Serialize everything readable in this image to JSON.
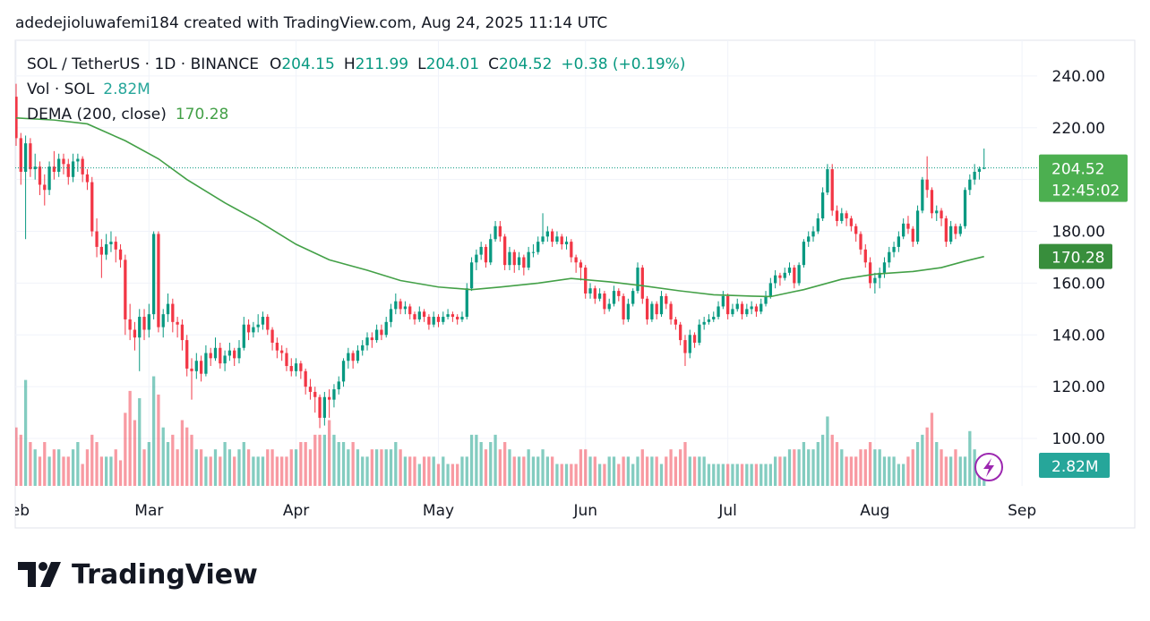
{
  "watermark": "adedejioluwafemi184 created with TradingView.com, Aug 24, 2025 11:14 UTC",
  "brand": "TradingView",
  "chart_data": {
    "type": "candlestick",
    "legend_title": "SOL / TetherUS · 1D · BINANCE",
    "ohlc_letters": [
      "O",
      "H",
      "L",
      "C"
    ],
    "change": "+0.38 (+0.19%)",
    "countdown": "12:45:02",
    "up_color": "#089981",
    "down_color": "#f23645",
    "grid": true,
    "xlim": [
      0,
      215
    ],
    "xticks": [
      {
        "value": 0,
        "label": "Feb"
      },
      {
        "value": 28,
        "label": "Mar"
      },
      {
        "value": 59,
        "label": "Apr"
      },
      {
        "value": 89,
        "label": "May"
      },
      {
        "value": 120,
        "label": "Jun"
      },
      {
        "value": 150,
        "label": "Jul"
      },
      {
        "value": 181,
        "label": "Aug"
      },
      {
        "value": 212,
        "label": "Sep"
      }
    ],
    "ylim": [
      81.7,
      253.8
    ],
    "yticks": [
      {
        "value": 100,
        "label": "100.00"
      },
      {
        "value": 120,
        "label": "120.00"
      },
      {
        "value": 140,
        "label": "140.00"
      },
      {
        "value": 160,
        "label": "160.00"
      },
      {
        "value": 180,
        "label": "180.00"
      },
      {
        "value": 200,
        "label": "200.00"
      },
      {
        "value": 220,
        "label": "220.00"
      },
      {
        "value": 240,
        "label": "240.00"
      }
    ],
    "ohlc": [
      [
        232,
        237,
        213,
        216
      ],
      [
        216,
        218,
        198,
        203
      ],
      [
        203,
        217,
        177,
        214
      ],
      [
        214,
        216,
        201,
        204
      ],
      [
        204,
        210,
        200,
        205
      ],
      [
        205,
        207,
        194,
        198
      ],
      [
        198,
        202,
        190,
        196
      ],
      [
        196,
        207,
        194,
        205
      ],
      [
        205,
        211,
        200,
        203
      ],
      [
        203,
        210,
        201,
        208
      ],
      [
        208,
        210,
        202,
        206
      ],
      [
        206,
        208,
        198,
        201
      ],
      [
        201,
        210,
        199,
        207
      ],
      [
        207,
        210,
        203,
        208
      ],
      [
        208,
        209,
        199,
        202
      ],
      [
        202,
        204,
        196,
        199
      ],
      [
        199,
        201,
        178,
        180
      ],
      [
        180,
        185,
        170,
        174
      ],
      [
        174,
        177,
        162,
        171
      ],
      [
        171,
        179,
        169,
        175
      ],
      [
        175,
        180,
        172,
        176
      ],
      [
        176,
        178,
        168,
        173
      ],
      [
        173,
        175,
        166,
        169
      ],
      [
        169,
        171,
        140,
        146
      ],
      [
        146,
        152,
        138,
        142
      ],
      [
        142,
        145,
        134,
        139
      ],
      [
        139,
        150,
        126,
        147
      ],
      [
        147,
        150,
        138,
        142
      ],
      [
        142,
        152,
        139,
        148
      ],
      [
        148,
        180,
        146,
        179
      ],
      [
        179,
        180,
        141,
        143
      ],
      [
        143,
        150,
        139,
        148
      ],
      [
        148,
        156,
        145,
        152
      ],
      [
        152,
        154,
        141,
        145
      ],
      [
        145,
        147,
        139,
        144
      ],
      [
        144,
        146,
        134,
        138
      ],
      [
        138,
        140,
        124,
        127
      ],
      [
        127,
        131,
        115,
        126
      ],
      [
        126,
        133,
        123,
        130
      ],
      [
        130,
        132,
        122,
        125
      ],
      [
        125,
        136,
        124,
        133
      ],
      [
        133,
        135,
        128,
        131
      ],
      [
        131,
        139,
        130,
        135
      ],
      [
        135,
        137,
        127,
        129
      ],
      [
        129,
        134,
        126,
        132
      ],
      [
        132,
        137,
        130,
        134
      ],
      [
        134,
        135,
        128,
        131
      ],
      [
        131,
        138,
        129,
        135
      ],
      [
        135,
        147,
        134,
        144
      ],
      [
        144,
        146,
        138,
        141
      ],
      [
        141,
        145,
        139,
        143
      ],
      [
        143,
        148,
        141,
        144
      ],
      [
        144,
        149,
        142,
        147
      ],
      [
        147,
        148,
        140,
        142
      ],
      [
        142,
        143,
        134,
        137
      ],
      [
        137,
        139,
        131,
        134
      ],
      [
        134,
        136,
        130,
        133
      ],
      [
        133,
        135,
        126,
        128
      ],
      [
        128,
        131,
        124,
        126
      ],
      [
        126,
        131,
        124,
        129
      ],
      [
        129,
        130,
        123,
        126
      ],
      [
        126,
        127,
        117,
        120
      ],
      [
        120,
        123,
        115,
        118
      ],
      [
        118,
        120,
        110,
        116
      ],
      [
        116,
        117,
        104,
        108
      ],
      [
        108,
        118,
        105,
        116
      ],
      [
        116,
        119,
        108,
        115
      ],
      [
        115,
        121,
        112,
        119
      ],
      [
        119,
        124,
        117,
        122
      ],
      [
        122,
        131,
        120,
        130
      ],
      [
        130,
        135,
        127,
        133
      ],
      [
        133,
        134,
        127,
        130
      ],
      [
        130,
        136,
        129,
        134
      ],
      [
        134,
        138,
        132,
        136
      ],
      [
        136,
        141,
        134,
        139
      ],
      [
        139,
        141,
        135,
        138
      ],
      [
        138,
        144,
        137,
        142
      ],
      [
        142,
        144,
        138,
        140
      ],
      [
        140,
        147,
        139,
        145
      ],
      [
        145,
        152,
        143,
        150
      ],
      [
        150,
        156,
        148,
        153
      ],
      [
        153,
        154,
        148,
        150
      ],
      [
        150,
        153,
        148,
        151
      ],
      [
        151,
        152,
        146,
        148
      ],
      [
        148,
        149,
        144,
        146
      ],
      [
        146,
        151,
        145,
        149
      ],
      [
        149,
        150,
        145,
        147
      ],
      [
        147,
        148,
        142,
        144
      ],
      [
        144,
        149,
        143,
        147
      ],
      [
        147,
        148,
        143,
        145
      ],
      [
        145,
        149,
        144,
        147
      ],
      [
        147,
        150,
        146,
        148
      ],
      [
        148,
        149,
        145,
        147
      ],
      [
        147,
        148,
        144,
        146
      ],
      [
        146,
        149,
        145,
        147
      ],
      [
        147,
        160,
        146,
        158
      ],
      [
        158,
        170,
        157,
        168
      ],
      [
        168,
        173,
        165,
        171
      ],
      [
        171,
        176,
        169,
        174
      ],
      [
        174,
        175,
        166,
        168
      ],
      [
        168,
        179,
        167,
        177
      ],
      [
        177,
        184,
        176,
        182
      ],
      [
        182,
        184,
        176,
        178
      ],
      [
        178,
        179,
        165,
        167
      ],
      [
        167,
        174,
        165,
        172
      ],
      [
        172,
        173,
        164,
        167
      ],
      [
        167,
        172,
        165,
        170
      ],
      [
        170,
        171,
        163,
        166
      ],
      [
        166,
        174,
        165,
        172
      ],
      [
        172,
        175,
        170,
        172
      ],
      [
        172,
        178,
        171,
        176
      ],
      [
        176,
        187,
        175,
        178
      ],
      [
        178,
        182,
        176,
        180
      ],
      [
        180,
        181,
        174,
        176
      ],
      [
        176,
        180,
        175,
        178
      ],
      [
        178,
        179,
        173,
        175
      ],
      [
        175,
        178,
        173,
        176
      ],
      [
        176,
        177,
        168,
        170
      ],
      [
        170,
        171,
        164,
        168
      ],
      [
        168,
        169,
        161,
        166
      ],
      [
        166,
        167,
        154,
        156
      ],
      [
        156,
        160,
        154,
        158
      ],
      [
        158,
        159,
        152,
        154
      ],
      [
        154,
        158,
        153,
        156
      ],
      [
        156,
        157,
        148,
        150
      ],
      [
        150,
        154,
        149,
        152
      ],
      [
        152,
        159,
        151,
        157
      ],
      [
        157,
        158,
        153,
        155
      ],
      [
        155,
        156,
        144,
        146
      ],
      [
        146,
        154,
        145,
        152
      ],
      [
        152,
        158,
        151,
        157
      ],
      [
        157,
        168,
        156,
        166
      ],
      [
        166,
        167,
        152,
        154
      ],
      [
        154,
        155,
        144,
        146
      ],
      [
        146,
        153,
        145,
        152
      ],
      [
        152,
        153,
        146,
        148
      ],
      [
        148,
        157,
        147,
        155
      ],
      [
        155,
        156,
        150,
        152
      ],
      [
        152,
        153,
        144,
        146
      ],
      [
        146,
        147,
        142,
        144
      ],
      [
        144,
        145,
        136,
        138
      ],
      [
        138,
        140,
        128,
        133
      ],
      [
        133,
        142,
        131,
        140
      ],
      [
        140,
        141,
        135,
        137
      ],
      [
        137,
        146,
        136,
        144
      ],
      [
        144,
        147,
        142,
        145
      ],
      [
        145,
        148,
        144,
        146
      ],
      [
        146,
        149,
        145,
        147
      ],
      [
        147,
        153,
        146,
        151
      ],
      [
        151,
        157,
        150,
        155
      ],
      [
        155,
        156,
        146,
        148
      ],
      [
        148,
        152,
        147,
        150
      ],
      [
        150,
        154,
        149,
        152
      ],
      [
        152,
        153,
        146,
        148
      ],
      [
        148,
        152,
        147,
        150
      ],
      [
        150,
        153,
        148,
        151
      ],
      [
        151,
        152,
        147,
        149
      ],
      [
        149,
        154,
        148,
        152
      ],
      [
        152,
        157,
        151,
        155
      ],
      [
        155,
        162,
        154,
        160
      ],
      [
        160,
        165,
        158,
        163
      ],
      [
        163,
        164,
        159,
        162
      ],
      [
        162,
        166,
        161,
        164
      ],
      [
        164,
        168,
        163,
        166
      ],
      [
        166,
        167,
        158,
        160
      ],
      [
        160,
        168,
        159,
        167
      ],
      [
        167,
        177,
        166,
        176
      ],
      [
        176,
        180,
        174,
        178
      ],
      [
        178,
        182,
        176,
        180
      ],
      [
        180,
        187,
        179,
        185
      ],
      [
        185,
        197,
        184,
        195
      ],
      [
        195,
        206,
        194,
        204
      ],
      [
        204,
        206,
        186,
        188
      ],
      [
        188,
        190,
        182,
        184
      ],
      [
        184,
        189,
        183,
        187
      ],
      [
        187,
        188,
        182,
        185
      ],
      [
        185,
        186,
        180,
        182
      ],
      [
        182,
        183,
        176,
        179
      ],
      [
        179,
        180,
        171,
        173
      ],
      [
        173,
        175,
        166,
        168
      ],
      [
        168,
        170,
        158,
        160
      ],
      [
        160,
        164,
        156,
        162
      ],
      [
        162,
        166,
        158,
        164
      ],
      [
        164,
        170,
        162,
        168
      ],
      [
        168,
        174,
        166,
        172
      ],
      [
        172,
        176,
        170,
        174
      ],
      [
        174,
        180,
        172,
        178
      ],
      [
        178,
        185,
        177,
        183
      ],
      [
        183,
        186,
        179,
        181
      ],
      [
        181,
        182,
        174,
        176
      ],
      [
        176,
        190,
        175,
        188
      ],
      [
        188,
        201,
        187,
        200
      ],
      [
        200,
        209,
        193,
        196
      ],
      [
        196,
        197,
        185,
        187
      ],
      [
        187,
        190,
        184,
        188
      ],
      [
        188,
        189,
        182,
        185
      ],
      [
        185,
        186,
        174,
        176
      ],
      [
        176,
        184,
        175,
        182
      ],
      [
        182,
        183,
        177,
        179
      ],
      [
        179,
        183,
        178,
        182
      ],
      [
        182,
        197,
        181,
        196
      ],
      [
        196,
        202,
        194,
        200
      ],
      [
        200,
        206,
        198,
        203
      ],
      [
        203,
        205,
        200,
        204.15
      ],
      [
        204.15,
        211.99,
        204.01,
        204.52
      ]
    ],
    "volume": {
      "name": "Vol · SOL",
      "last_label": "2.82M",
      "ylim": [
        0,
        61
      ],
      "values": [
        8,
        7,
        14.5,
        6,
        5,
        4,
        6,
        4,
        5,
        5,
        4,
        4,
        5,
        6,
        3,
        5,
        7,
        6,
        4,
        4,
        4,
        5,
        3.5,
        10,
        13,
        9,
        12,
        5,
        6,
        15,
        12.5,
        8,
        6,
        7,
        5,
        9,
        8,
        7,
        5,
        5,
        4,
        4,
        5,
        4,
        6,
        5,
        4,
        5,
        6,
        5,
        4,
        4,
        4,
        5,
        5,
        4,
        4,
        4,
        5,
        5,
        6,
        6,
        5,
        7,
        7,
        7,
        9,
        7,
        6,
        6,
        5,
        6,
        5,
        4,
        4,
        5,
        5,
        5,
        5,
        5,
        6,
        5,
        4,
        4,
        4,
        3,
        4,
        4,
        4,
        3,
        4,
        3,
        3,
        3,
        4,
        4,
        7,
        7,
        6,
        5,
        6,
        7,
        5,
        6,
        5,
        4,
        4,
        4,
        5,
        4,
        4,
        5,
        4,
        4,
        3,
        3,
        3,
        3,
        3,
        5,
        5,
        4,
        4,
        3,
        3,
        4,
        4,
        3,
        4,
        4,
        3,
        4,
        5,
        4,
        4,
        4,
        3,
        4,
        5,
        4,
        5,
        6,
        4,
        4,
        4,
        4,
        3,
        3,
        3,
        3,
        3,
        3,
        3,
        3,
        3,
        3,
        3,
        3,
        3,
        3,
        4,
        4,
        4,
        5,
        5,
        5,
        6,
        5,
        5,
        6,
        7,
        9.5,
        7,
        6,
        5,
        4,
        4,
        4,
        5,
        5,
        6,
        5,
        5,
        4,
        4,
        4,
        3,
        3,
        4,
        5,
        6,
        7,
        8,
        10,
        6,
        5,
        4,
        4,
        5,
        4,
        4,
        7.5,
        5,
        3.5,
        2.82
      ]
    },
    "dema": {
      "name": "DEMA (200, close)",
      "color": "#43a047",
      "x": [
        0,
        8,
        15,
        23,
        30,
        36,
        44,
        51,
        59,
        66,
        74,
        81,
        89,
        96,
        102,
        110,
        117,
        125,
        132,
        140,
        147,
        155,
        159,
        166,
        174,
        181,
        189,
        195,
        200,
        204
      ],
      "values": [
        223.8,
        223,
        221.5,
        215,
        208,
        200,
        191,
        184,
        175,
        169,
        165,
        161,
        158.5,
        157.5,
        158.5,
        160,
        161.8,
        160.5,
        159,
        157,
        155.5,
        155,
        154.8,
        157.5,
        161.5,
        163.5,
        164.5,
        166,
        168.5,
        170.28
      ]
    }
  }
}
